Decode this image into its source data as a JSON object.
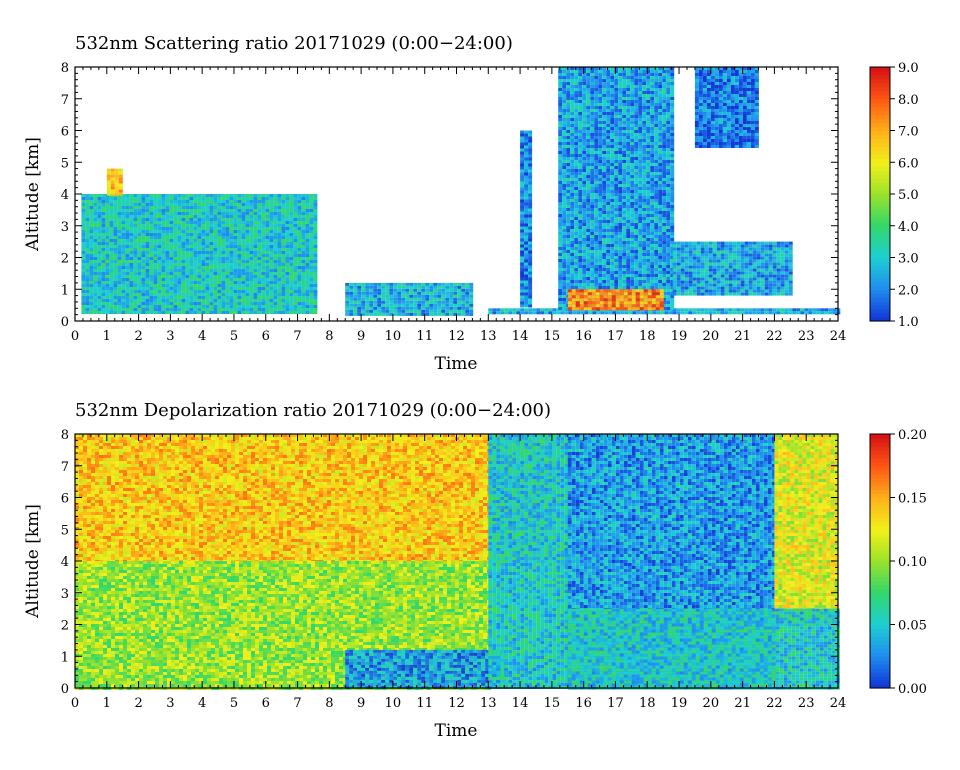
{
  "chart_data": [
    {
      "type": "heatmap",
      "title": "532nm Scattering ratio  20171029 (0:00−24:00)",
      "xlabel": "Time",
      "ylabel": "Altitude [km]",
      "xlim": [
        0,
        24
      ],
      "ylim": [
        0,
        8
      ],
      "x_ticks": [
        "0",
        "1",
        "2",
        "3",
        "4",
        "5",
        "6",
        "7",
        "8",
        "9",
        "10",
        "11",
        "12",
        "13",
        "14",
        "15",
        "16",
        "17",
        "18",
        "19",
        "20",
        "21",
        "22",
        "23",
        "24"
      ],
      "y_ticks": [
        "0",
        "1",
        "2",
        "3",
        "4",
        "5",
        "6",
        "7",
        "8"
      ],
      "colorbar": {
        "range": [
          1.0,
          9.0
        ],
        "ticks": [
          "1.0",
          "2.0",
          "3.0",
          "4.0",
          "5.0",
          "6.0",
          "7.0",
          "8.0",
          "9.0"
        ],
        "colors": [
          "#1238d8",
          "#1f8ff0",
          "#1ed0d0",
          "#33d86a",
          "#9ae22a",
          "#f2f01a",
          "#ffb21a",
          "#ff5a14",
          "#d81414"
        ]
      },
      "regions": [
        {
          "x": [
            0.2,
            7.6
          ],
          "y": [
            0.3,
            4.0
          ],
          "level": 3.0
        },
        {
          "x": [
            1.0,
            1.5
          ],
          "y": [
            4.0,
            4.8
          ],
          "level": 6.5
        },
        {
          "x": [
            8.5,
            12.5
          ],
          "y": [
            0.2,
            1.2
          ],
          "level": 2.5
        },
        {
          "x": [
            13.0,
            24.0
          ],
          "y": [
            0.25,
            0.4
          ],
          "level": 2.5
        },
        {
          "x": [
            14.0,
            14.3
          ],
          "y": [
            0.5,
            6.0
          ],
          "level": 2.0
        },
        {
          "x": [
            15.2,
            18.8
          ],
          "y": [
            0.4,
            8.0
          ],
          "level": 2.3
        },
        {
          "x": [
            15.5,
            18.5
          ],
          "y": [
            0.4,
            1.0
          ],
          "level": 7.5
        },
        {
          "x": [
            18.8,
            22.5
          ],
          "y": [
            0.8,
            2.5
          ],
          "level": 2.4
        },
        {
          "x": [
            19.5,
            21.5
          ],
          "y": [
            5.5,
            8.0
          ],
          "level": 1.8
        }
      ]
    },
    {
      "type": "heatmap",
      "title": "532nm Depolarization ratio  20171029 (0:00−24:00)",
      "xlabel": "Time",
      "ylabel": "Altitude [km]",
      "xlim": [
        0,
        24
      ],
      "ylim": [
        0,
        8
      ],
      "x_ticks": [
        "0",
        "1",
        "2",
        "3",
        "4",
        "5",
        "6",
        "7",
        "8",
        "9",
        "10",
        "11",
        "12",
        "13",
        "14",
        "15",
        "16",
        "17",
        "18",
        "19",
        "20",
        "21",
        "22",
        "23",
        "24"
      ],
      "y_ticks": [
        "0",
        "1",
        "2",
        "3",
        "4",
        "5",
        "6",
        "7",
        "8"
      ],
      "colorbar": {
        "range": [
          0.0,
          0.2
        ],
        "ticks": [
          "0.00",
          "0.05",
          "0.10",
          "0.15",
          "0.20"
        ],
        "colors": [
          "#1238d8",
          "#1f8ff0",
          "#1ed0d0",
          "#33d86a",
          "#9ae22a",
          "#f2f01a",
          "#ffb21a",
          "#ff5a14",
          "#d81414"
        ]
      },
      "regions": [
        {
          "x": [
            0.0,
            15.0
          ],
          "y": [
            4.0,
            8.0
          ],
          "level": 0.14
        },
        {
          "x": [
            0.0,
            7.8
          ],
          "y": [
            0.0,
            4.0
          ],
          "level": 0.1
        },
        {
          "x": [
            7.8,
            13.0
          ],
          "y": [
            0.0,
            4.0
          ],
          "level": 0.1
        },
        {
          "x": [
            8.5,
            13.5
          ],
          "y": [
            0.0,
            1.2
          ],
          "level": 0.03
        },
        {
          "x": [
            13.0,
            15.5
          ],
          "y": [
            0.0,
            8.0
          ],
          "level": 0.05
        },
        {
          "x": [
            15.5,
            22.0
          ],
          "y": [
            0.0,
            8.0
          ],
          "level": 0.03
        },
        {
          "x": [
            22.0,
            24.0
          ],
          "y": [
            2.0,
            8.0
          ],
          "level": 0.12
        },
        {
          "x": [
            15.5,
            24.0
          ],
          "y": [
            0.0,
            2.5
          ],
          "level": 0.05
        }
      ]
    }
  ]
}
